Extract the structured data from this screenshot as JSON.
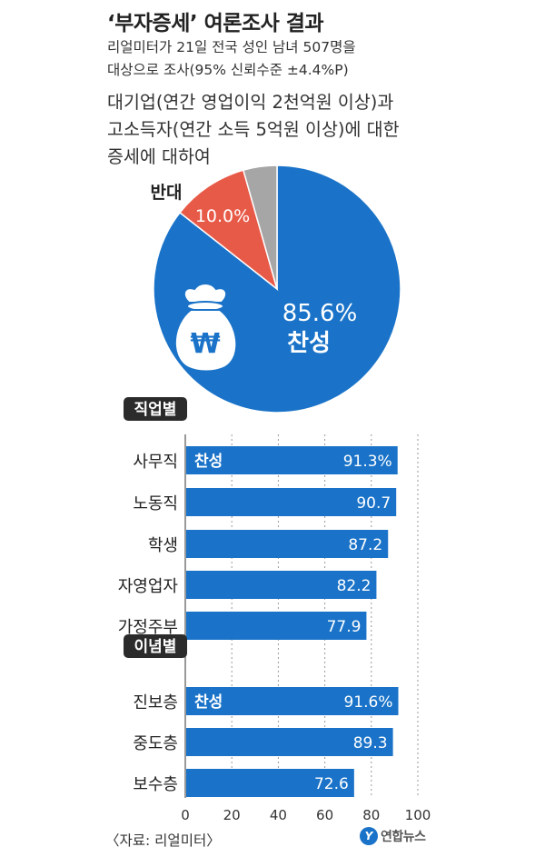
{
  "header": {
    "title": "‘부자증세’ 여론조사 결과",
    "subtitle_line1": "리얼미터가 21일 전국 성인 남녀 507명을",
    "subtitle_line2": "대상으로 조사(95% 신뢰수준 ±4.4%P)",
    "question_line1": "대기업(연간 영업이익 2천억원 이상)과",
    "question_line2": "고소득자(연간 소득 5억원 이상)에 대한",
    "question_line3": "증세에 대하여"
  },
  "colors": {
    "blue": "#1a73c8",
    "red": "#e85a48",
    "gray": "#a6a6a6",
    "label_bg": "#2b2b2b"
  },
  "chart_data": [
    {
      "type": "pie",
      "slices": [
        {
          "label": "찬성",
          "value": 85.6,
          "value_label": "85.6%",
          "color": "#1a73c8"
        },
        {
          "label": "반대",
          "value": 10.0,
          "value_label": "10.0%",
          "color": "#e85a48"
        },
        {
          "label": "",
          "value": 4.4,
          "value_label": "",
          "color": "#a6a6a6"
        }
      ],
      "icon": "money-bag-won-icon"
    },
    {
      "type": "bar",
      "orientation": "horizontal",
      "xlim": [
        0,
        100
      ],
      "xticks": [
        0,
        20,
        40,
        60,
        80,
        100
      ],
      "gridlines": "dotted vertical",
      "groups": [
        {
          "label": "직업별",
          "rows": [
            {
              "category": "사무직",
              "value": 91.3,
              "value_label": "91.3%",
              "series_label": "찬성"
            },
            {
              "category": "노동직",
              "value": 90.7,
              "value_label": "90.7",
              "series_label": ""
            },
            {
              "category": "학생",
              "value": 87.2,
              "value_label": "87.2",
              "series_label": ""
            },
            {
              "category": "자영업자",
              "value": 82.2,
              "value_label": "82.2",
              "series_label": ""
            },
            {
              "category": "가정주부",
              "value": 77.9,
              "value_label": "77.9",
              "series_label": ""
            }
          ]
        },
        {
          "label": "이념별",
          "rows": [
            {
              "category": "진보층",
              "value": 91.6,
              "value_label": "91.6%",
              "series_label": "찬성"
            },
            {
              "category": "중도층",
              "value": 89.3,
              "value_label": "89.3",
              "series_label": ""
            },
            {
              "category": "보수층",
              "value": 72.6,
              "value_label": "72.6",
              "series_label": ""
            }
          ]
        }
      ]
    }
  ],
  "footer": {
    "source": "〈자료: 리얼미터〉",
    "logo_mark": "Y",
    "logo_text": "연합뉴스"
  }
}
